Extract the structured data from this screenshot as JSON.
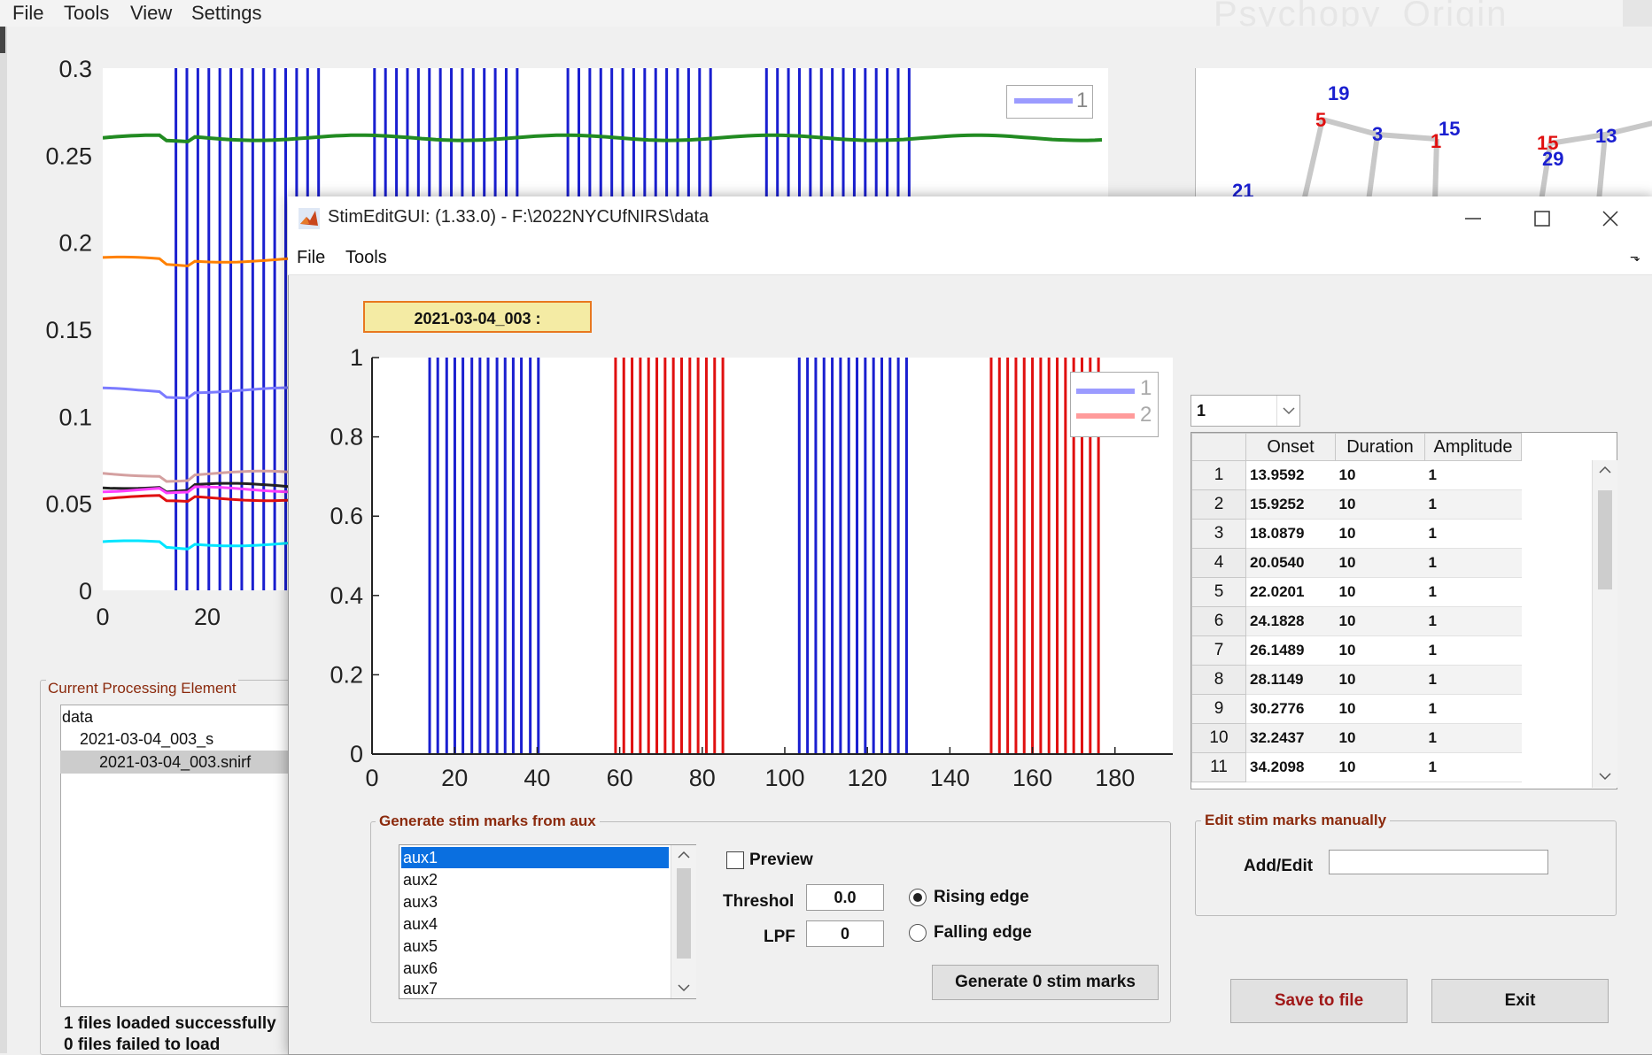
{
  "main_window": {
    "menu": [
      "File",
      "Tools",
      "View",
      "Settings"
    ],
    "watermark": "Psychopy_Origin",
    "plot": {
      "y_ticks": [
        "0.3",
        "0.25",
        "0.2",
        "0.15",
        "0.1",
        "0.05",
        "0"
      ],
      "x_ticks": [
        "0",
        "20"
      ],
      "legend": "1",
      "stim_color": "#1a1fd0",
      "series_colors": [
        "#228b22",
        "#ff8000",
        "#7b7bff",
        "#d4a0a0",
        "#222222",
        "#ff40ff",
        "#e01010",
        "#00e5ff"
      ]
    },
    "probe": {
      "labels": [
        {
          "text": "19",
          "color": "#1a1fd0"
        },
        {
          "text": "5",
          "color": "#e01010"
        },
        {
          "text": "3",
          "color": "#1a1fd0"
        },
        {
          "text": "1",
          "color": "#e01010"
        },
        {
          "text": "15",
          "color": "#1a1fd0"
        },
        {
          "text": "15",
          "color": "#e01010"
        },
        {
          "text": "29",
          "color": "#1a1fd0"
        },
        {
          "text": "13",
          "color": "#1a1fd0"
        },
        {
          "text": "21",
          "color": "#1a1fd0"
        }
      ]
    },
    "processing_panel": {
      "title": "Current Processing Element",
      "tree": [
        "data",
        "2021-03-04_003_s",
        "2021-03-04_003.snirf"
      ],
      "status_loaded": "1 files loaded successfully",
      "status_failed": "0 files failed to load"
    }
  },
  "dialog": {
    "title": "StimEditGUI: (1.33.0) - F:\\2022NYCUfNIRS\\data",
    "menu": [
      "File",
      "Tools"
    ],
    "file_label": "2021-03-04_003 :",
    "chart_data": {
      "type": "bar",
      "x_ticks": [
        "0",
        "20",
        "40",
        "60",
        "80",
        "100",
        "120",
        "140",
        "160",
        "180"
      ],
      "y_ticks": [
        "1",
        "0.8",
        "0.6",
        "0.4",
        "0.2",
        "0"
      ],
      "xlim": [
        0,
        194
      ],
      "ylim": [
        0,
        1
      ],
      "series": [
        {
          "name": "1",
          "color": "#1a1fd0",
          "onsets": [
            13.9592,
            15.9252,
            18.0879,
            20.054,
            22.0201,
            24.1828,
            26.1489,
            28.1149,
            30.2776,
            32.2437,
            34.2098,
            36.1759,
            38.3386,
            40.3046,
            103.5,
            105.5,
            107.5,
            109.5,
            111.5,
            113.5,
            115.5,
            117.5,
            119.5,
            121.5,
            123.5,
            125.5,
            127.5,
            129.5
          ],
          "amplitude": 1
        },
        {
          "name": "2",
          "color": "#e01010",
          "onsets": [
            59.0,
            61.0,
            63.0,
            65.0,
            67.0,
            69.0,
            71.0,
            73.0,
            75.0,
            77.0,
            79.0,
            81.0,
            83.0,
            85.0,
            150.0,
            152.0,
            154.0,
            156.0,
            158.0,
            160.0,
            162.0,
            164.0,
            166.0,
            168.0,
            170.0,
            172.0,
            174.0,
            176.0
          ],
          "amplitude": 1
        }
      ],
      "legend": [
        "1",
        "2"
      ],
      "legend_colors": [
        "#9b9bff",
        "#ff9b9b"
      ]
    },
    "condition_select": "1",
    "table": {
      "columns": [
        "Onset",
        "Duration",
        "Amplitude"
      ],
      "rows": [
        [
          "1",
          "13.9592",
          "10",
          "1"
        ],
        [
          "2",
          "15.9252",
          "10",
          "1"
        ],
        [
          "3",
          "18.0879",
          "10",
          "1"
        ],
        [
          "4",
          "20.0540",
          "10",
          "1"
        ],
        [
          "5",
          "22.0201",
          "10",
          "1"
        ],
        [
          "6",
          "24.1828",
          "10",
          "1"
        ],
        [
          "7",
          "26.1489",
          "10",
          "1"
        ],
        [
          "8",
          "28.1149",
          "10",
          "1"
        ],
        [
          "9",
          "30.2776",
          "10",
          "1"
        ],
        [
          "10",
          "32.2437",
          "10",
          "1"
        ],
        [
          "11",
          "34.2098",
          "10",
          "1"
        ]
      ]
    },
    "aux_panel": {
      "title": "Generate stim marks from aux",
      "items": [
        "aux1",
        "aux2",
        "aux3",
        "aux4",
        "aux5",
        "aux6",
        "aux7"
      ],
      "selected": "aux1",
      "preview_label": "Preview",
      "threshold_label": "Threshol",
      "threshold_value": "0.0",
      "lpf_label": "LPF",
      "lpf_value": "0",
      "rising_label": "Rising edge",
      "falling_label": "Falling edge",
      "generate_label": "Generate 0 stim marks"
    },
    "edit_panel": {
      "title": "Edit stim marks manually",
      "add_edit_label": "Add/Edit",
      "add_edit_value": ""
    },
    "save_label": "Save to file",
    "exit_label": "Exit"
  }
}
